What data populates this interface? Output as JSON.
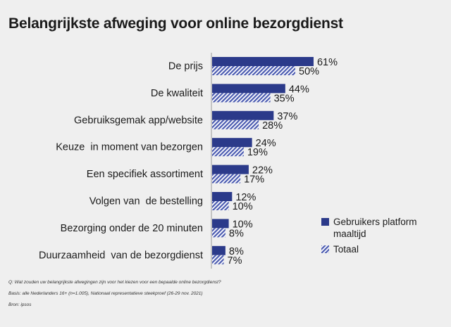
{
  "title": "Belangrijkste afweging voor online bezorgdienst",
  "footnotes": {
    "question": "Q: Wat zouden uw belangrijkste afwegingen zijn voor het kiezen voor een bepaalde online bezorgdienst?",
    "basis": "Basis: alle Nederlanders 16+ (n=1.005), Nationaal representatieve steekproef (26-29 nov. 2021)",
    "source": "Bron: ipsos"
  },
  "colors": {
    "series1": "#2b3a8a",
    "series2": "#4a5ab0",
    "background": "#efefef"
  },
  "chart_data": {
    "type": "bar",
    "orientation": "horizontal",
    "categories": [
      "De prijs",
      "De kwaliteit",
      "Gebruiksgemak app/website",
      "Keuze  in moment van bezorgen",
      "Een specifiek assortiment",
      "Volgen van  de bestelling",
      "Bezorging onder de 20 minuten",
      "Duurzaamheid  van de bezorgdienst"
    ],
    "series": [
      {
        "name": "Gebruikers platform maaltijd",
        "values": [
          61,
          44,
          37,
          24,
          22,
          12,
          10,
          8
        ],
        "style": "solid"
      },
      {
        "name": "Totaal",
        "values": [
          50,
          35,
          28,
          19,
          17,
          10,
          8,
          7
        ],
        "style": "hatched"
      }
    ],
    "value_suffix": "%",
    "legend": {
      "position": "right",
      "lines": [
        [
          "Gebruikers platform",
          "maaltijd"
        ],
        [
          "Totaal"
        ]
      ]
    },
    "grid": false
  }
}
